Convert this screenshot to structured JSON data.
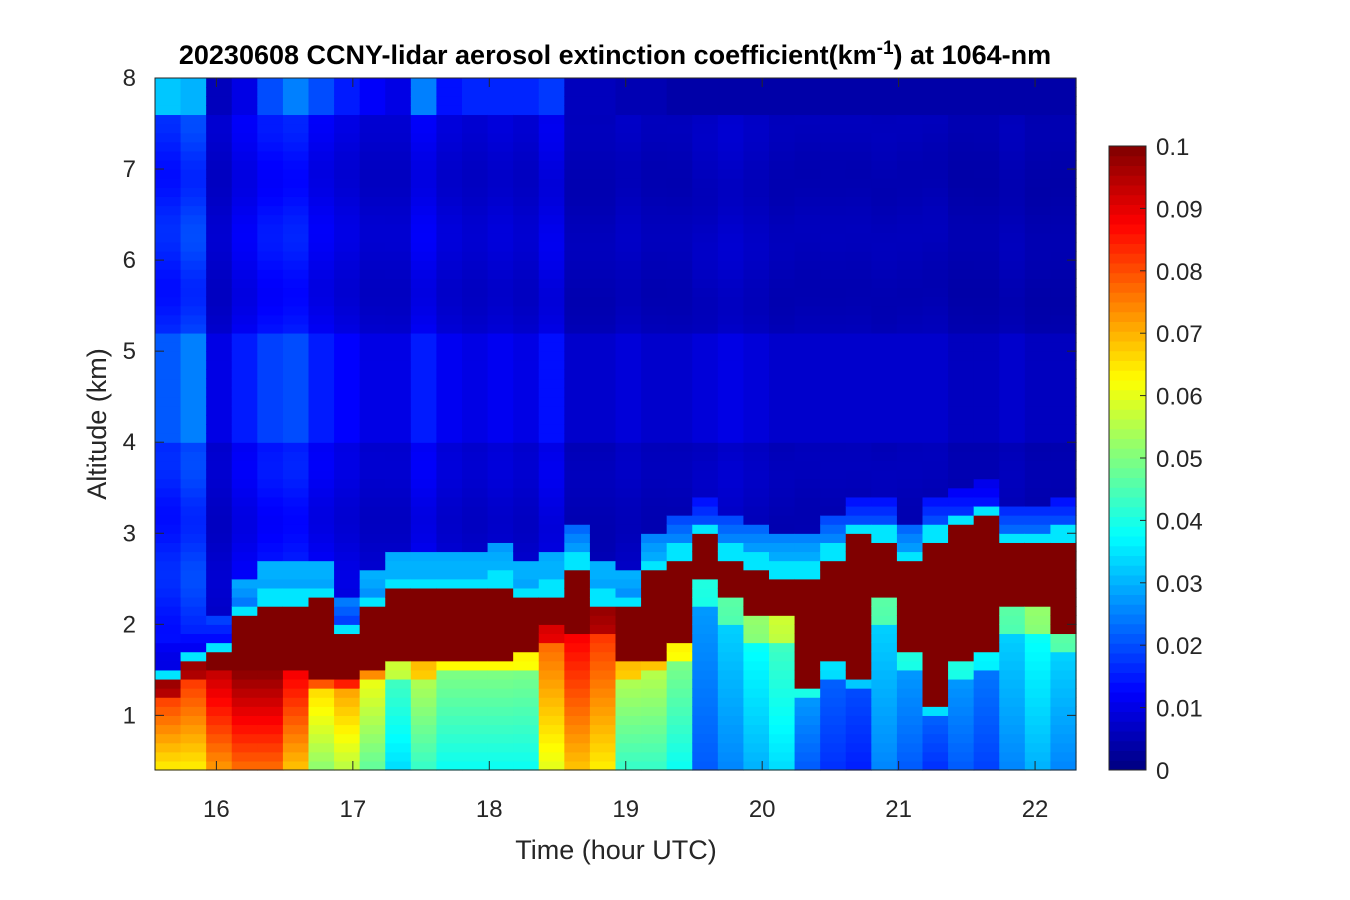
{
  "chart_data": {
    "type": "heatmap",
    "title": "20230608 CCNY-lidar aerosol extinction coefficient(km",
    "title_superscript": "-1",
    "title_suffix": ") at 1064-nm",
    "xlabel": "Time (hour UTC)",
    "ylabel": "Altitude (km)",
    "xlim": [
      15.55,
      22.3
    ],
    "ylim": [
      0.4,
      8
    ],
    "x_ticks": [
      "16",
      "17",
      "18",
      "19",
      "20",
      "21",
      "22"
    ],
    "x_tick_values": [
      16,
      17,
      18,
      19,
      20,
      21,
      22
    ],
    "y_ticks": [
      "1",
      "2",
      "3",
      "4",
      "5",
      "6",
      "7",
      "8"
    ],
    "y_tick_values": [
      1,
      2,
      3,
      4,
      5,
      6,
      7,
      8
    ],
    "colorbar": {
      "colormap": "jet",
      "clim": [
        0,
        0.1
      ],
      "ticks": [
        "0",
        "0.01",
        "0.02",
        "0.03",
        "0.04",
        "0.05",
        "0.06",
        "0.07",
        "0.08",
        "0.09",
        "0.1"
      ],
      "tick_values": [
        0,
        0.01,
        0.02,
        0.03,
        0.04,
        0.05,
        0.06,
        0.07,
        0.08,
        0.09,
        0.1
      ]
    },
    "time_start": 15.55,
    "time_step": 0.1875,
    "columns": [
      {
        "ns": 0.075,
        "lb": 1.4,
        "saturated_top": 1.4,
        "upper": 0.017,
        "top": 0.032
      },
      {
        "ns": 0.075,
        "lb": 1.6,
        "saturated_top": 1.6,
        "upper": 0.02,
        "top": 0.03
      },
      {
        "ns": 0.085,
        "lb": 1.7,
        "saturated_top": 1.7,
        "upper": 0.008,
        "top": 0.006
      },
      {
        "ns": 0.09,
        "lb": 1.7,
        "saturated_top": 2.1,
        "upper": 0.012,
        "top": 0.01
      },
      {
        "ns": 0.09,
        "lb": 1.7,
        "saturated_top": 2.25,
        "upper": 0.015,
        "top": 0.02
      },
      {
        "ns": 0.08,
        "lb": 1.65,
        "saturated_top": 2.25,
        "upper": 0.016,
        "top": 0.025
      },
      {
        "ns": 0.06,
        "lb": 1.45,
        "saturated_top": 2.3,
        "upper": 0.012,
        "top": 0.02
      },
      {
        "ns": 0.065,
        "lb": 1.45,
        "saturated_top": 1.9,
        "upper": 0.01,
        "top": 0.015
      },
      {
        "ns": 0.055,
        "lb": 1.55,
        "saturated_top": 2.2,
        "upper": 0.008,
        "top": 0.012
      },
      {
        "ns": 0.04,
        "lb": 1.6,
        "saturated_top": 2.4,
        "upper": 0.008,
        "top": 0.01
      },
      {
        "ns": 0.05,
        "lb": 1.6,
        "saturated_top": 2.4,
        "upper": 0.012,
        "top": 0.025
      },
      {
        "ns": 0.045,
        "lb": 1.65,
        "saturated_top": 2.4,
        "upper": 0.009,
        "top": 0.014
      },
      {
        "ns": 0.045,
        "lb": 1.65,
        "saturated_top": 2.4,
        "upper": 0.008,
        "top": 0.016
      },
      {
        "ns": 0.045,
        "lb": 1.65,
        "saturated_top": 2.45,
        "upper": 0.009,
        "top": 0.016
      },
      {
        "ns": 0.045,
        "lb": 1.7,
        "saturated_top": 2.3,
        "upper": 0.008,
        "top": 0.016
      },
      {
        "ns": 0.07,
        "lb": 2.05,
        "saturated_top": 2.35,
        "upper": 0.011,
        "top": 0.018
      },
      {
        "ns": 0.08,
        "lb": 2.15,
        "saturated_top": 2.65,
        "upper": 0.006,
        "top": 0.006
      },
      {
        "ns": 0.075,
        "lb": 2.2,
        "saturated_top": 2.25,
        "upper": 0.006,
        "top": 0.006
      },
      {
        "ns": 0.05,
        "lb": 1.6,
        "saturated_top": 2.2,
        "upper": 0.007,
        "top": 0.005
      },
      {
        "ns": 0.05,
        "lb": 1.65,
        "saturated_top": 2.6,
        "upper": 0.006,
        "top": 0.005
      },
      {
        "ns": 0.045,
        "lb": 1.8,
        "saturated_top": 2.75,
        "upper": 0.006,
        "top": 0.004
      },
      {
        "ns": 0.025,
        "lb": 2.5,
        "saturated_top": 3.0,
        "upper": 0.007,
        "top": 0.004
      },
      {
        "ns": 0.03,
        "lb": 2.3,
        "saturated_top": 2.75,
        "upper": 0.008,
        "top": 0.004
      },
      {
        "ns": 0.035,
        "lb": 2.1,
        "saturated_top": 2.65,
        "upper": 0.007,
        "top": 0.004
      },
      {
        "ns": 0.04,
        "lb": 2.1,
        "saturated_top": 2.55,
        "upper": 0.006,
        "top": 0.004
      },
      {
        "ns": 0.025,
        "lb": 1.35,
        "saturated_top": 2.55,
        "upper": 0.006,
        "top": 0.004
      },
      {
        "ns": 0.02,
        "lb": 1.6,
        "saturated_top": 2.75,
        "upper": 0.006,
        "top": 0.004
      },
      {
        "ns": 0.018,
        "lb": 1.45,
        "saturated_top": 3.0,
        "upper": 0.006,
        "top": 0.004
      },
      {
        "ns": 0.03,
        "lb": 2.3,
        "saturated_top": 2.95,
        "upper": 0.006,
        "top": 0.004
      },
      {
        "ns": 0.025,
        "lb": 1.7,
        "saturated_top": 2.7,
        "upper": 0.006,
        "top": 0.004
      },
      {
        "ns": 0.02,
        "lb": 1.1,
        "saturated_top": 2.95,
        "upper": 0.006,
        "top": 0.004
      },
      {
        "ns": 0.025,
        "lb": 1.6,
        "saturated_top": 3.1,
        "upper": 0.005,
        "top": 0.004
      },
      {
        "ns": 0.022,
        "lb": 1.75,
        "saturated_top": 3.2,
        "upper": 0.005,
        "top": 0.004
      },
      {
        "ns": 0.03,
        "lb": 2.2,
        "saturated_top": 2.9,
        "upper": 0.006,
        "top": 0.004
      },
      {
        "ns": 0.035,
        "lb": 2.2,
        "saturated_top": 2.9,
        "upper": 0.005,
        "top": 0.004
      },
      {
        "ns": 0.03,
        "lb": 1.9,
        "saturated_top": 2.95,
        "upper": 0.005,
        "top": 0.004
      }
    ]
  }
}
